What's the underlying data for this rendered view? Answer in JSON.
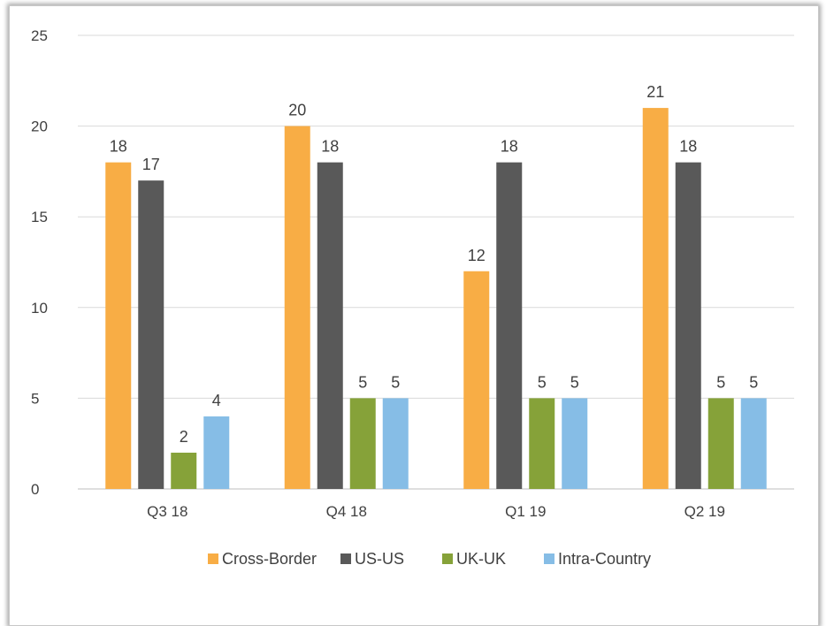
{
  "chart_data": {
    "type": "bar",
    "title": "",
    "xlabel": "",
    "ylabel": "",
    "categories": [
      "Q3 18",
      "Q4 18",
      "Q1 19",
      "Q2 19"
    ],
    "series": [
      {
        "name": "Cross-Border",
        "color": "#f8ad45",
        "values": [
          18,
          20,
          12,
          21
        ]
      },
      {
        "name": "US-US",
        "color": "#595959",
        "values": [
          17,
          18,
          18,
          18
        ]
      },
      {
        "name": "UK-UK",
        "color": "#86a239",
        "values": [
          2,
          5,
          5,
          5
        ]
      },
      {
        "name": "Intra-Country",
        "color": "#86bde6",
        "values": [
          4,
          5,
          5,
          5
        ]
      }
    ],
    "ylim": [
      0,
      25
    ],
    "yticks": [
      0,
      5,
      10,
      15,
      20,
      25
    ],
    "grid": true,
    "legend_position": "bottom",
    "data_labels": true
  }
}
